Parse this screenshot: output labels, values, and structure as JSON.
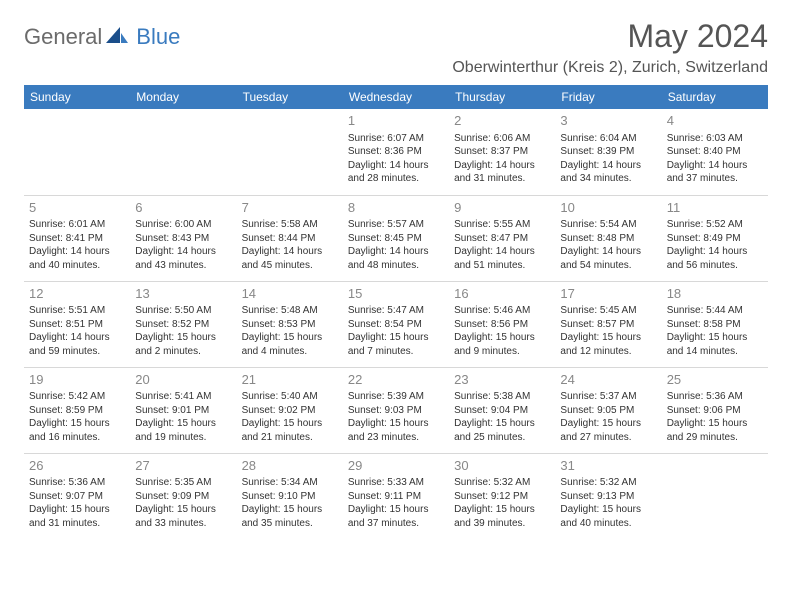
{
  "brand": {
    "part1": "General",
    "part2": "Blue"
  },
  "title": "May 2024",
  "location": "Oberwinterthur (Kreis 2), Zurich, Switzerland",
  "header_bg": "#3a7bbf",
  "days": [
    "Sunday",
    "Monday",
    "Tuesday",
    "Wednesday",
    "Thursday",
    "Friday",
    "Saturday"
  ],
  "weeks": [
    [
      null,
      null,
      null,
      {
        "n": "1",
        "sr": "6:07 AM",
        "ss": "8:36 PM",
        "dl1": "14 hours",
        "dl2": "and 28 minutes."
      },
      {
        "n": "2",
        "sr": "6:06 AM",
        "ss": "8:37 PM",
        "dl1": "14 hours",
        "dl2": "and 31 minutes."
      },
      {
        "n": "3",
        "sr": "6:04 AM",
        "ss": "8:39 PM",
        "dl1": "14 hours",
        "dl2": "and 34 minutes."
      },
      {
        "n": "4",
        "sr": "6:03 AM",
        "ss": "8:40 PM",
        "dl1": "14 hours",
        "dl2": "and 37 minutes."
      }
    ],
    [
      {
        "n": "5",
        "sr": "6:01 AM",
        "ss": "8:41 PM",
        "dl1": "14 hours",
        "dl2": "and 40 minutes."
      },
      {
        "n": "6",
        "sr": "6:00 AM",
        "ss": "8:43 PM",
        "dl1": "14 hours",
        "dl2": "and 43 minutes."
      },
      {
        "n": "7",
        "sr": "5:58 AM",
        "ss": "8:44 PM",
        "dl1": "14 hours",
        "dl2": "and 45 minutes."
      },
      {
        "n": "8",
        "sr": "5:57 AM",
        "ss": "8:45 PM",
        "dl1": "14 hours",
        "dl2": "and 48 minutes."
      },
      {
        "n": "9",
        "sr": "5:55 AM",
        "ss": "8:47 PM",
        "dl1": "14 hours",
        "dl2": "and 51 minutes."
      },
      {
        "n": "10",
        "sr": "5:54 AM",
        "ss": "8:48 PM",
        "dl1": "14 hours",
        "dl2": "and 54 minutes."
      },
      {
        "n": "11",
        "sr": "5:52 AM",
        "ss": "8:49 PM",
        "dl1": "14 hours",
        "dl2": "and 56 minutes."
      }
    ],
    [
      {
        "n": "12",
        "sr": "5:51 AM",
        "ss": "8:51 PM",
        "dl1": "14 hours",
        "dl2": "and 59 minutes."
      },
      {
        "n": "13",
        "sr": "5:50 AM",
        "ss": "8:52 PM",
        "dl1": "15 hours",
        "dl2": "and 2 minutes."
      },
      {
        "n": "14",
        "sr": "5:48 AM",
        "ss": "8:53 PM",
        "dl1": "15 hours",
        "dl2": "and 4 minutes."
      },
      {
        "n": "15",
        "sr": "5:47 AM",
        "ss": "8:54 PM",
        "dl1": "15 hours",
        "dl2": "and 7 minutes."
      },
      {
        "n": "16",
        "sr": "5:46 AM",
        "ss": "8:56 PM",
        "dl1": "15 hours",
        "dl2": "and 9 minutes."
      },
      {
        "n": "17",
        "sr": "5:45 AM",
        "ss": "8:57 PM",
        "dl1": "15 hours",
        "dl2": "and 12 minutes."
      },
      {
        "n": "18",
        "sr": "5:44 AM",
        "ss": "8:58 PM",
        "dl1": "15 hours",
        "dl2": "and 14 minutes."
      }
    ],
    [
      {
        "n": "19",
        "sr": "5:42 AM",
        "ss": "8:59 PM",
        "dl1": "15 hours",
        "dl2": "and 16 minutes."
      },
      {
        "n": "20",
        "sr": "5:41 AM",
        "ss": "9:01 PM",
        "dl1": "15 hours",
        "dl2": "and 19 minutes."
      },
      {
        "n": "21",
        "sr": "5:40 AM",
        "ss": "9:02 PM",
        "dl1": "15 hours",
        "dl2": "and 21 minutes."
      },
      {
        "n": "22",
        "sr": "5:39 AM",
        "ss": "9:03 PM",
        "dl1": "15 hours",
        "dl2": "and 23 minutes."
      },
      {
        "n": "23",
        "sr": "5:38 AM",
        "ss": "9:04 PM",
        "dl1": "15 hours",
        "dl2": "and 25 minutes."
      },
      {
        "n": "24",
        "sr": "5:37 AM",
        "ss": "9:05 PM",
        "dl1": "15 hours",
        "dl2": "and 27 minutes."
      },
      {
        "n": "25",
        "sr": "5:36 AM",
        "ss": "9:06 PM",
        "dl1": "15 hours",
        "dl2": "and 29 minutes."
      }
    ],
    [
      {
        "n": "26",
        "sr": "5:36 AM",
        "ss": "9:07 PM",
        "dl1": "15 hours",
        "dl2": "and 31 minutes."
      },
      {
        "n": "27",
        "sr": "5:35 AM",
        "ss": "9:09 PM",
        "dl1": "15 hours",
        "dl2": "and 33 minutes."
      },
      {
        "n": "28",
        "sr": "5:34 AM",
        "ss": "9:10 PM",
        "dl1": "15 hours",
        "dl2": "and 35 minutes."
      },
      {
        "n": "29",
        "sr": "5:33 AM",
        "ss": "9:11 PM",
        "dl1": "15 hours",
        "dl2": "and 37 minutes."
      },
      {
        "n": "30",
        "sr": "5:32 AM",
        "ss": "9:12 PM",
        "dl1": "15 hours",
        "dl2": "and 39 minutes."
      },
      {
        "n": "31",
        "sr": "5:32 AM",
        "ss": "9:13 PM",
        "dl1": "15 hours",
        "dl2": "and 40 minutes."
      },
      null
    ]
  ]
}
